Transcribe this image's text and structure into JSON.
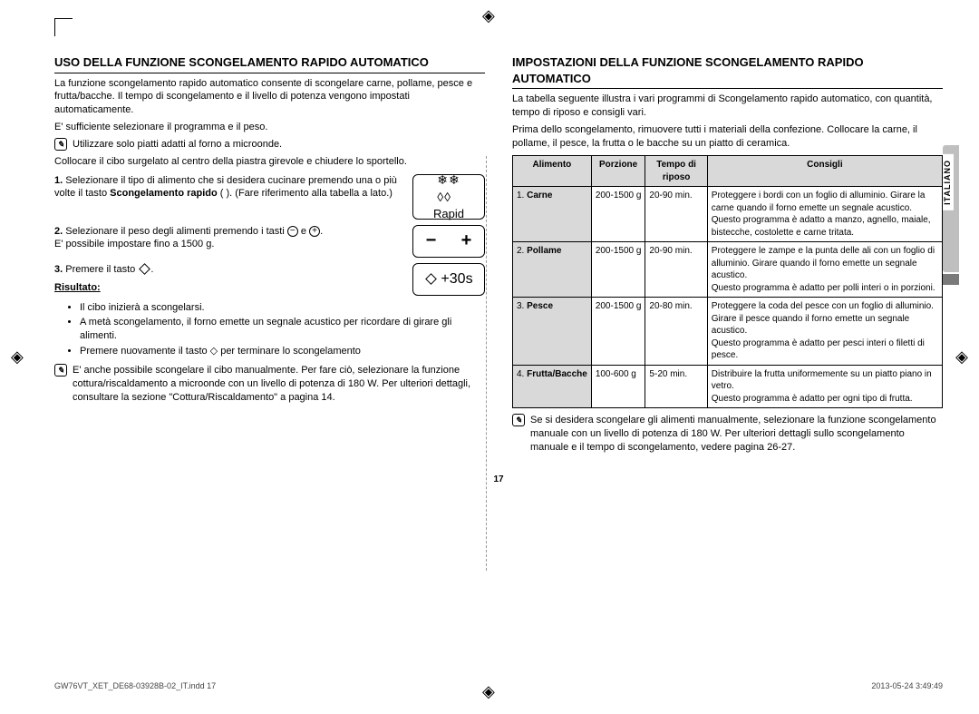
{
  "page": {
    "number": "17",
    "footer_left": "GW76VT_XET_DE68-03928B-02_IT.indd   17",
    "footer_date": "2013-05-24   3:49:49",
    "side_label": "ITALIANO"
  },
  "left": {
    "heading": "USO DELLA FUNZIONE SCONGELAMENTO RAPIDO AUTOMATICO",
    "intro1": "La funzione scongelamento rapido automatico consente di scongelare carne, pollame, pesce e frutta/bacche. Il tempo di scongelamento e il livello di potenza vengono impostati automaticamente.",
    "intro2": "E' sufficiente selezionare il programma e il peso.",
    "note1": "Utilizzare solo piatti adatti al forno a microonde.",
    "intro3": "Collocare il cibo surgelato al centro della piastra girevole e chiudere lo sportello.",
    "step1_num": "1.",
    "step1_a": "Selezionare il tipo di alimento che si desidera cucinare premendo una o più volte il tasto ",
    "step1_b": "Scongelamento rapido",
    "step1_c": " (      ). (Fare riferimento alla tabella a lato.)",
    "rapid_label": "Rapid",
    "step2_num": "2.",
    "step2_a": "Selezionare il peso degli alimenti premendo i tasti ",
    "step2_b": " e ",
    "step2_c": ".",
    "step2_d": "E' possibile impostare fino a 1500 g.",
    "step3_num": "3.",
    "step3_a": "Premere il tasto ",
    "step3_b": ".",
    "risultato_label": "Risultato:",
    "bullets": [
      "Il cibo inizierà a scongelarsi.",
      "A metà scongelamento, il forno emette un segnale acustico per ricordare di girare gli alimenti.",
      "Premere nuovamente il tasto ◇ per terminare lo scongelamento"
    ],
    "btn_30s": "+30s",
    "note2": "E' anche possibile scongelare il cibo manualmente. Per fare ciò, selezionare la funzione cottura/riscaldamento a microonde con un livello di potenza di 180 W. Per ulteriori dettagli, consultare la sezione \"Cottura/Riscaldamento\" a pagina 14."
  },
  "right": {
    "heading": "IMPOSTAZIONI DELLA FUNZIONE SCONGELAMENTO RAPIDO AUTOMATICO",
    "intro1": "La tabella seguente illustra i vari programmi di Scongelamento rapido automatico, con quantità, tempo di riposo e consigli vari.",
    "intro2": "Prima dello scongelamento, rimuovere tutti i materiali della confezione. Collocare la carne, il pollame, il pesce, la frutta o le bacche su un piatto di ceramica.",
    "table": {
      "headers": [
        "Alimento",
        "Porzione",
        "Tempo di riposo",
        "Consigli"
      ],
      "rows": [
        {
          "food": "1. Carne",
          "portion": "200-1500 g",
          "rest": "20-90 min.",
          "tip": "Proteggere i bordi con un foglio di alluminio. Girare la carne quando il forno emette un segnale acustico.\nQuesto programma è adatto a manzo, agnello, maiale, bistecche, costolette e carne tritata."
        },
        {
          "food": "2. Pollame",
          "portion": "200-1500 g",
          "rest": "20-90 min.",
          "tip": "Proteggere le zampe e la punta delle ali con un foglio di alluminio. Girare quando il forno emette un segnale acustico.\nQuesto programma è adatto per polli interi o in porzioni."
        },
        {
          "food": "3. Pesce",
          "portion": "200-1500 g",
          "rest": "20-80 min.",
          "tip": "Proteggere la coda del pesce con un foglio di alluminio.\nGirare il pesce quando il forno emette un segnale acustico.\nQuesto programma è adatto per pesci interi o filetti di pesce."
        },
        {
          "food": "4. Frutta/Bacche",
          "portion": "100-600 g",
          "rest": "5-20 min.",
          "tip": "Distribuire la frutta uniformemente su un piatto piano in vetro.\nQuesto programma è adatto per ogni tipo di frutta."
        }
      ]
    },
    "note": "Se si desidera scongelare gli alimenti manualmente, selezionare la funzione scongelamento manuale con un livello di potenza di 180 W. Per ulteriori dettagli sullo scongelamento manuale e il tempo di scongelamento, vedere pagina 26-27."
  }
}
